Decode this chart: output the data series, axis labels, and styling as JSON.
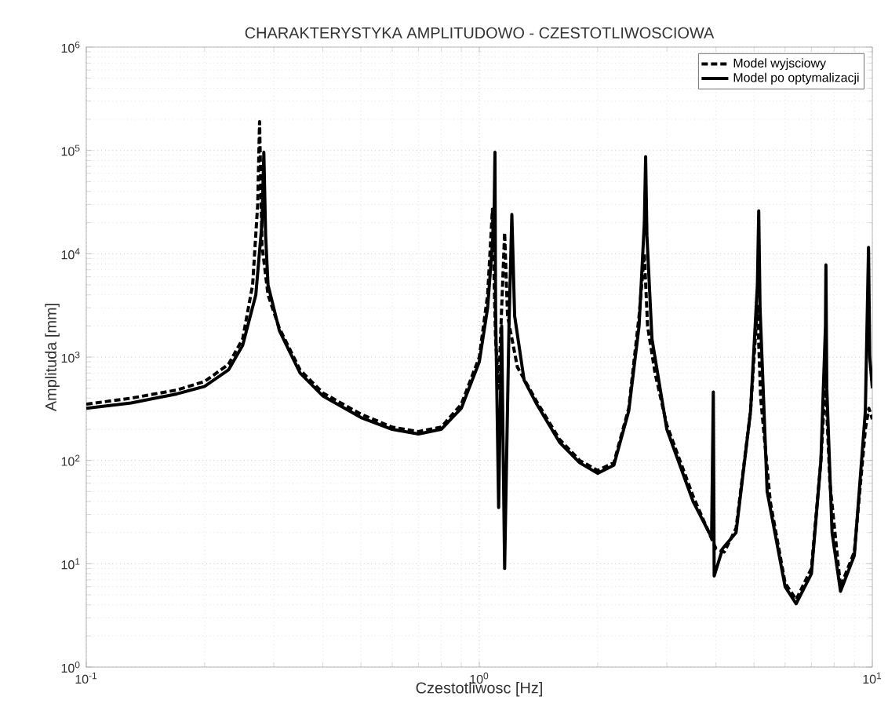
{
  "chart_data": {
    "type": "line",
    "title": "CHARAKTERYSTYKA AMPLITUDOWO - CZESTOTLIWOSCIOWA",
    "xlabel": "Czestotliwosc [Hz]",
    "ylabel": "Amplituda [mm]",
    "log": "xy",
    "grid": true,
    "legend": "top right",
    "marker": "none",
    "xlim": [
      0.1,
      10
    ],
    "ylim": [
      1,
      1000000
    ],
    "xticks": [
      {
        "value": 0.1,
        "label": "10$^{-1}$"
      },
      {
        "value": 1,
        "label": "10$^{0}$"
      },
      {
        "value": 10,
        "label": "10$^{1}$"
      }
    ],
    "yticks": [
      {
        "value": 1,
        "label": "10$^{0}$"
      },
      {
        "value": 10,
        "label": "10$^{1}$"
      },
      {
        "value": 100,
        "label": "10$^{2}$"
      },
      {
        "value": 1000,
        "label": "10$^{3}$"
      },
      {
        "value": 10000,
        "label": "10$^{4}$"
      },
      {
        "value": 100000,
        "label": "10$^{5}$"
      },
      {
        "value": 1000000,
        "label": "10$^{6}$"
      }
    ],
    "series": [
      {
        "name": "Model wyjsciowy",
        "color": "#000000",
        "line_style": "dashed",
        "x": [
          0.1,
          0.13,
          0.17,
          0.2,
          0.23,
          0.25,
          0.265,
          0.273,
          0.276,
          0.28,
          0.29,
          0.31,
          0.35,
          0.4,
          0.5,
          0.6,
          0.7,
          0.8,
          0.9,
          1.0,
          1.05,
          1.08,
          1.1,
          1.12,
          1.14,
          1.16,
          1.18,
          1.25,
          1.4,
          1.6,
          1.8,
          2.0,
          2.2,
          2.4,
          2.55,
          2.63,
          2.68,
          2.8,
          3.0,
          3.5,
          4.0,
          4.2,
          4.5,
          4.9,
          5.1,
          5.2,
          5.5,
          6.0,
          6.4,
          7.0,
          7.4,
          7.6,
          7.8,
          8.3,
          9.0,
          9.6,
          9.8,
          10
        ],
        "values": [
          350,
          400,
          480,
          580,
          850,
          1500,
          5000,
          30000,
          190000,
          12000,
          4000,
          1900,
          750,
          450,
          280,
          210,
          190,
          210,
          350,
          1000,
          4000,
          27000,
          1500,
          500,
          3000,
          16000,
          2500,
          800,
          370,
          160,
          100,
          80,
          95,
          320,
          2500,
          10000,
          2000,
          700,
          220,
          45,
          14,
          13,
          22,
          300,
          3100,
          400,
          40,
          6.5,
          4.5,
          9,
          100,
          600,
          60,
          6,
          13,
          200,
          320,
          250
        ]
      },
      {
        "name": "Model po optymalizacji",
        "color": "#000000",
        "line_style": "solid",
        "x": [
          0.1,
          0.13,
          0.17,
          0.2,
          0.23,
          0.25,
          0.27,
          0.28,
          0.283,
          0.286,
          0.29,
          0.31,
          0.35,
          0.4,
          0.5,
          0.6,
          0.7,
          0.8,
          0.9,
          1.0,
          1.05,
          1.09,
          1.096,
          1.1,
          1.12,
          1.14,
          1.16,
          1.19,
          1.21,
          1.23,
          1.3,
          1.4,
          1.6,
          1.8,
          2.0,
          2.2,
          2.4,
          2.55,
          2.63,
          2.65,
          2.67,
          2.75,
          3.0,
          3.5,
          3.9,
          3.94,
          3.96,
          4.16,
          4.5,
          4.9,
          5.1,
          5.14,
          5.18,
          5.4,
          6.0,
          6.4,
          7.0,
          7.4,
          7.6,
          7.62,
          7.66,
          7.9,
          8.3,
          9.0,
          9.6,
          9.78,
          9.85,
          10
        ],
        "values": [
          320,
          360,
          440,
          520,
          750,
          1300,
          4000,
          20000,
          96000,
          15000,
          5000,
          1800,
          700,
          420,
          260,
          200,
          180,
          200,
          320,
          900,
          3000,
          20000,
          96000,
          3000,
          35,
          2000,
          9,
          2000,
          24000,
          2500,
          600,
          350,
          150,
          95,
          75,
          90,
          300,
          2000,
          20000,
          87000,
          15000,
          1500,
          200,
          40,
          18,
          460,
          7.6,
          14,
          20,
          300,
          5000,
          26000,
          3000,
          50,
          6,
          4.1,
          8,
          100,
          2000,
          7800,
          500,
          20,
          5.4,
          12,
          300,
          11500,
          1000,
          500
        ]
      }
    ]
  }
}
